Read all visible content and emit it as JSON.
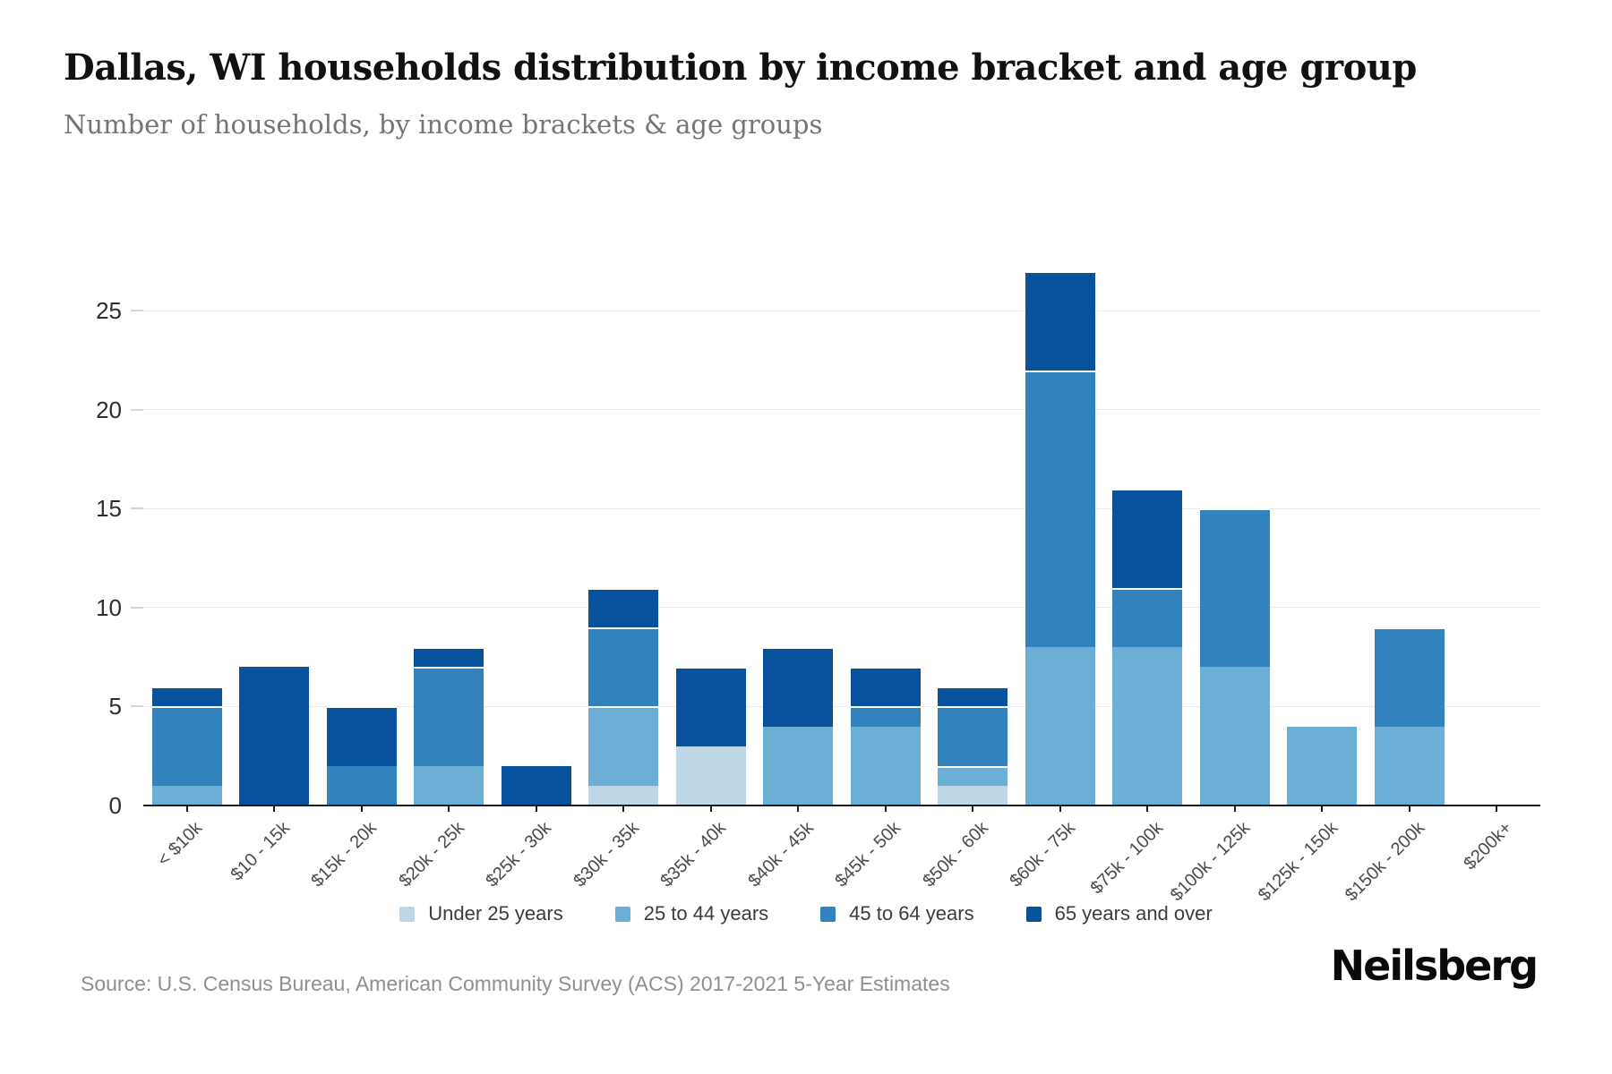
{
  "header": {
    "title": "Dallas, WI households distribution by income bracket and age group",
    "subtitle": "Number of households, by income brackets & age groups"
  },
  "footer": {
    "source": "Source: U.S. Census Bureau, American Community Survey (ACS) 2017-2021 5-Year Estimates",
    "brand": "Neilsberg"
  },
  "colors": {
    "under_25": "#bdd7e6",
    "age_25_44": "#6baed6",
    "age_45_64": "#3182bd",
    "age_65_over": "#08519c",
    "gridline": "#ebebeb",
    "axis": "#1b1b1b",
    "segment_separator": "#ffffff"
  },
  "chart_data": {
    "type": "bar",
    "stacked": true,
    "title": "Dallas, WI households distribution by income bracket and age group",
    "subtitle": "Number of households, by income brackets & age groups",
    "xlabel": "",
    "ylabel": "",
    "grid": "horizontal",
    "legend_position": "bottom",
    "y_ticks": [
      0,
      5,
      10,
      15,
      20,
      25
    ],
    "ylim": [
      0,
      29.4
    ],
    "categories": [
      "< $10k",
      "$10 - 15k",
      "$15k - 20k",
      "$20k - 25k",
      "$25k - 30k",
      "$30k - 35k",
      "$35k - 40k",
      "$40k - 45k",
      "$45k - 50k",
      "$50k - 60k",
      "$60k - 75k",
      "$75k - 100k",
      "$100k - 125k",
      "$125k - 150k",
      "$150k - 200k",
      "$200k+"
    ],
    "series": [
      {
        "name": "Under 25 years",
        "color": "#bdd7e6",
        "values": [
          0,
          0,
          0,
          0,
          0,
          1,
          3,
          0,
          0,
          1,
          0,
          0,
          0,
          0,
          0,
          0
        ]
      },
      {
        "name": "25 to 44 years",
        "color": "#6baed6",
        "values": [
          1,
          0,
          0,
          2,
          0,
          4,
          0,
          4,
          4,
          1,
          8,
          8,
          7,
          4,
          4,
          0
        ]
      },
      {
        "name": "45 to 64 years",
        "color": "#3182bd",
        "values": [
          4,
          0,
          2,
          5,
          0,
          4,
          0,
          0,
          1,
          3,
          14,
          3,
          8,
          0,
          5,
          0
        ]
      },
      {
        "name": "65 years and over",
        "color": "#08519c",
        "values": [
          1,
          7,
          3,
          1,
          2,
          2,
          4,
          4,
          2,
          1,
          5,
          5,
          0,
          0,
          0,
          0
        ]
      }
    ],
    "totals": [
      6,
      7,
      5,
      8,
      2,
      11,
      7,
      8,
      7,
      6,
      27,
      16,
      15,
      4,
      9,
      0
    ]
  }
}
